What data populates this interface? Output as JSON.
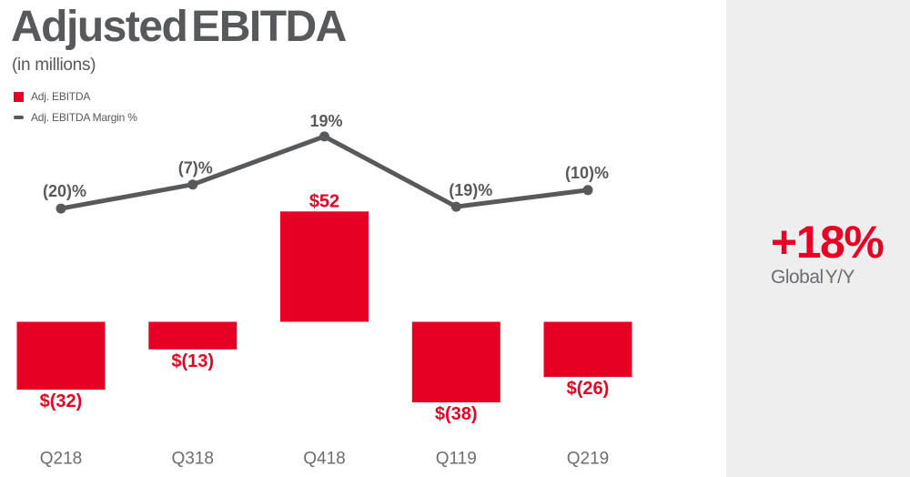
{
  "header": {
    "title": "Adjusted EBITDA",
    "subtitle": "(in millions)"
  },
  "legend": {
    "items": [
      {
        "label": "Adj. EBITDA",
        "marker": "square-icon"
      },
      {
        "label": "Adj. EBITDA Margin %",
        "marker": "dash-icon"
      }
    ]
  },
  "side_panel": {
    "value": "+18%",
    "caption": "Global Y/Y"
  },
  "colors": {
    "red": "#e60023",
    "dark_gray": "#58595b",
    "axis_gray": "#6d6e71",
    "panel_bg": "#eeeeee"
  },
  "chart_data": {
    "type": "bar",
    "title": "Adjusted EBITDA",
    "subtitle": "(in millions)",
    "categories": [
      "Q218",
      "Q318",
      "Q418",
      "Q119",
      "Q219"
    ],
    "series": [
      {
        "name": "Adj. EBITDA",
        "type": "bar",
        "color": "#e60023",
        "values": [
          -32,
          -13,
          52,
          -38,
          -26
        ],
        "data_labels": [
          "$(32)",
          "$(13)",
          "$52",
          "$(38)",
          "$(26)"
        ]
      },
      {
        "name": "Adj. EBITDA Margin %",
        "type": "line",
        "color": "#58595b",
        "values": [
          -20,
          -7,
          19,
          -19,
          -10
        ],
        "data_labels": [
          "(20)%",
          "(7)%",
          "19%",
          "(19)%",
          "(10)%"
        ]
      }
    ],
    "grid": false,
    "axes_visible": false,
    "legend_position": "top-left"
  }
}
